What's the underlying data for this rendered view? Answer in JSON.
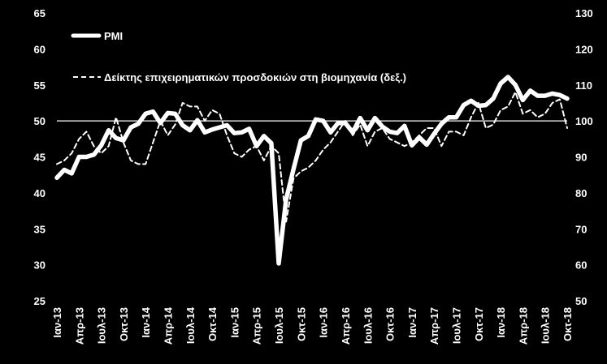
{
  "chart_data": {
    "type": "line",
    "x": [
      "Ιαν-13",
      "Φεβ-13",
      "Μαρ-13",
      "Απρ-13",
      "Μαϊ-13",
      "Ιουν-13",
      "Ιουλ-13",
      "Αυγ-13",
      "Σεπ-13",
      "Οκτ-13",
      "Νοε-13",
      "Δεκ-13",
      "Ιαν-14",
      "Φεβ-14",
      "Μαρ-14",
      "Απρ-14",
      "Μαϊ-14",
      "Ιουν-14",
      "Ιουλ-14",
      "Αυγ-14",
      "Σεπ-14",
      "Οκτ-14",
      "Νοε-14",
      "Δεκ-14",
      "Ιαν-15",
      "Φεβ-15",
      "Μαρ-15",
      "Απρ-15",
      "Μαϊ-15",
      "Ιουν-15",
      "Ιουλ-15",
      "Αυγ-15",
      "Σεπ-15",
      "Οκτ-15",
      "Νοε-15",
      "Δεκ-15",
      "Ιαν-16",
      "Φεβ-16",
      "Μαρ-16",
      "Απρ-16",
      "Μαϊ-16",
      "Ιουν-16",
      "Ιουλ-16",
      "Αυγ-16",
      "Σεπ-16",
      "Οκτ-16",
      "Νοε-16",
      "Δεκ-16",
      "Ιαν-17",
      "Φεβ-17",
      "Μαρ-17",
      "Απρ-17",
      "Μαϊ-17",
      "Ιουν-17",
      "Ιουλ-17",
      "Αυγ-17",
      "Σεπ-17",
      "Οκτ-17",
      "Νοε-17",
      "Δεκ-17",
      "Ιαν-18",
      "Φεβ-18",
      "Μαρ-18",
      "Απρ-18",
      "Μαϊ-18",
      "Ιουν-18",
      "Ιουλ-18",
      "Αυγ-18",
      "Σεπ-18",
      "Οκτ-18"
    ],
    "x_tick_labels": [
      "Ιαν-13",
      "Απρ-13",
      "Ιουλ-13",
      "Οκτ-13",
      "Ιαν-14",
      "Απρ-14",
      "Ιουλ-14",
      "Οκτ-14",
      "Ιαν-15",
      "Απρ-15",
      "Ιουλ-15",
      "Οκτ-15",
      "Ιαν-16",
      "Απρ-16",
      "Ιουλ-16",
      "Οκτ-16",
      "Ιαν-17",
      "Απρ-17",
      "Ιουλ-17",
      "Οκτ-17",
      "Ιαν-18",
      "Απρ-18",
      "Ιουλ-18",
      "Οκτ-18"
    ],
    "ylim_left": [
      25,
      65
    ],
    "yticks_left": [
      25,
      30,
      35,
      40,
      45,
      50,
      55,
      60,
      65
    ],
    "ylim_right": [
      50,
      130
    ],
    "yticks_right": [
      50,
      60,
      70,
      80,
      90,
      100,
      110,
      120,
      130
    ],
    "reference_line": 50,
    "legend_position": "top-left",
    "series": [
      {
        "name": "PMI",
        "axis": "left",
        "style": "solid",
        "color": "#ffffff",
        "values": [
          42.1,
          43.2,
          42.7,
          45.0,
          45.0,
          45.3,
          46.6,
          48.7,
          47.6,
          47.3,
          49.1,
          49.6,
          51.0,
          51.3,
          49.7,
          51.1,
          51.0,
          49.4,
          48.7,
          50.1,
          48.4,
          48.8,
          49.1,
          49.4,
          48.3,
          48.4,
          48.9,
          46.5,
          47.9,
          46.9,
          30.2,
          39.1,
          43.3,
          47.3,
          47.9,
          50.2,
          50.0,
          48.4,
          49.7,
          49.7,
          48.4,
          50.4,
          48.7,
          50.4,
          49.2,
          48.5,
          48.3,
          49.3,
          46.6,
          47.7,
          46.7,
          48.2,
          49.6,
          50.5,
          50.5,
          52.2,
          52.8,
          52.1,
          52.2,
          53.1,
          55.2,
          56.1,
          55.0,
          52.9,
          54.2,
          53.5,
          53.5,
          53.8,
          53.6,
          53.1
        ]
      },
      {
        "name": "Δείκτης επιχειρηματικών προσδοκιών στη βιομηχανία (δεξ.)",
        "axis": "right",
        "style": "dashed",
        "color": "#ffffff",
        "values": [
          88,
          89,
          91,
          95,
          97,
          93,
          91,
          93,
          101,
          94,
          89,
          88,
          88,
          94,
          100,
          96,
          99,
          105,
          104,
          104,
          100,
          103,
          102,
          96,
          91,
          90,
          92,
          93,
          89,
          93,
          91,
          72,
          84,
          86,
          87,
          89,
          92,
          94,
          97,
          100,
          96,
          99,
          93,
          97,
          98,
          95,
          94,
          93,
          94,
          96,
          98,
          98,
          93,
          97,
          97,
          96,
          101,
          105,
          98,
          99,
          103,
          104,
          108,
          102,
          103,
          101,
          102,
          105,
          106,
          98
        ]
      }
    ]
  }
}
